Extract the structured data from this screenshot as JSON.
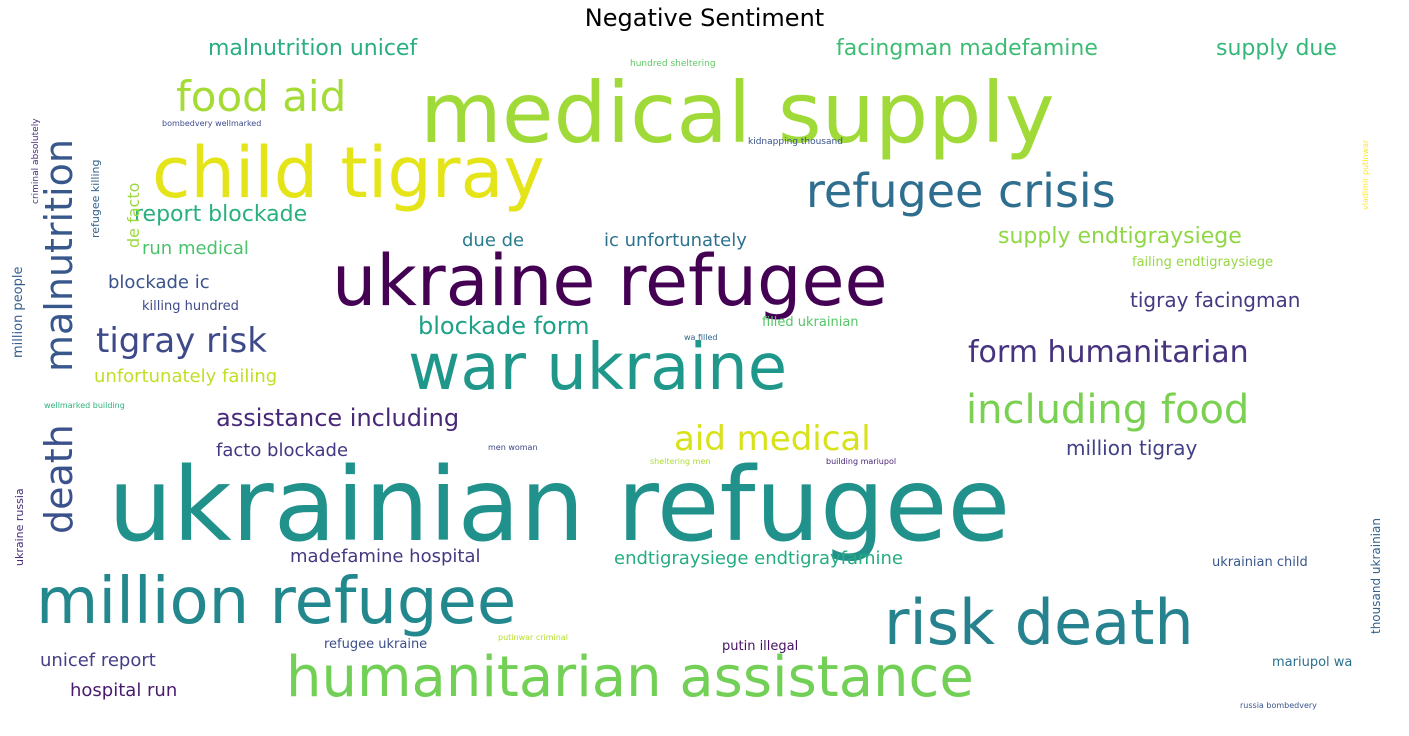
{
  "title": "Negative Sentiment",
  "words": [
    {
      "text": "ukrainian refugee",
      "color": "#21918c"
    },
    {
      "text": "medical supply",
      "color": "#a0da39"
    },
    {
      "text": "ukraine refugee",
      "color": "#440154"
    },
    {
      "text": "child tigray",
      "color": "#e4e419"
    },
    {
      "text": "war ukraine",
      "color": "#1f988b"
    },
    {
      "text": "million refugee",
      "color": "#23888e"
    },
    {
      "text": "humanitarian assistance",
      "color": "#73d056"
    },
    {
      "text": "risk death",
      "color": "#26828e"
    },
    {
      "text": "refugee crisis",
      "color": "#2e6e8e"
    },
    {
      "text": "malnutrition",
      "color": "#38588c"
    },
    {
      "text": "death",
      "color": "#3b518b"
    },
    {
      "text": "including food",
      "color": "#7ad151"
    },
    {
      "text": "food aid",
      "color": "#a5db36"
    },
    {
      "text": "form humanitarian",
      "color": "#46327e"
    },
    {
      "text": "aid medical",
      "color": "#d8e219"
    },
    {
      "text": "tigray risk",
      "color": "#3e4989"
    },
    {
      "text": "blockade form",
      "color": "#1fa187"
    },
    {
      "text": "assistance including",
      "color": "#482878"
    },
    {
      "text": "malnutrition unicef",
      "color": "#29af7f"
    },
    {
      "text": "facingman madefamine",
      "color": "#3dbc74"
    },
    {
      "text": "supply due",
      "color": "#35b779"
    },
    {
      "text": "report blockade",
      "color": "#2ab07f"
    },
    {
      "text": "supply endtigraysiege",
      "color": "#8fd744"
    },
    {
      "text": "tigray facingman",
      "color": "#443a83"
    },
    {
      "text": "million tigray",
      "color": "#424086"
    },
    {
      "text": "unfortunately failing",
      "color": "#c0df25"
    },
    {
      "text": "run medical",
      "color": "#4ac16d"
    },
    {
      "text": "blockade ic",
      "color": "#3b528b"
    },
    {
      "text": "ic unfortunately",
      "color": "#2c728e"
    },
    {
      "text": "due de",
      "color": "#287c8e"
    },
    {
      "text": "facto blockade",
      "color": "#453781"
    },
    {
      "text": "madefamine hospital",
      "color": "#453882"
    },
    {
      "text": "endtigraysiege endtigrayfamine",
      "color": "#25ac82"
    },
    {
      "text": "unicef report",
      "color": "#433e85"
    },
    {
      "text": "hospital run",
      "color": "#481b6d"
    },
    {
      "text": "de facto",
      "color": "#9bd93c"
    },
    {
      "text": "killing hundred",
      "color": "#3e4a89"
    },
    {
      "text": "failing endtigraysiege",
      "color": "#95d840"
    },
    {
      "text": "filled ukrainian",
      "color": "#54c568"
    },
    {
      "text": "ukrainian child",
      "color": "#39568c"
    },
    {
      "text": "refugee ukraine",
      "color": "#3c4f8a"
    },
    {
      "text": "putin illegal",
      "color": "#471164"
    },
    {
      "text": "mariupol wa",
      "color": "#2d708e"
    },
    {
      "text": "hundred sheltering",
      "color": "#5ec962"
    },
    {
      "text": "kidnapping thousand",
      "color": "#3a538b"
    },
    {
      "text": "bombedvery wellmarked",
      "color": "#3e4c8a"
    },
    {
      "text": "refugee killing",
      "color": "#34618d"
    },
    {
      "text": "criminal absolutely",
      "color": "#472d7b"
    },
    {
      "text": "million people",
      "color": "#365d8d"
    },
    {
      "text": "wellmarked building",
      "color": "#2db27d"
    },
    {
      "text": "wa filled",
      "color": "#31678e"
    },
    {
      "text": "men woman",
      "color": "#3f4788"
    },
    {
      "text": "sheltering men",
      "color": "#addc30"
    },
    {
      "text": "building mariupol",
      "color": "#482576"
    },
    {
      "text": "ukraine russia",
      "color": "#472c7a"
    },
    {
      "text": "thousand ukrainian",
      "color": "#34618d"
    },
    {
      "text": "vladimir putinwar",
      "color": "#fde725"
    },
    {
      "text": "putinwar criminal",
      "color": "#b5de2b"
    },
    {
      "text": "russia bombedvery",
      "color": "#3a548c"
    }
  ]
}
